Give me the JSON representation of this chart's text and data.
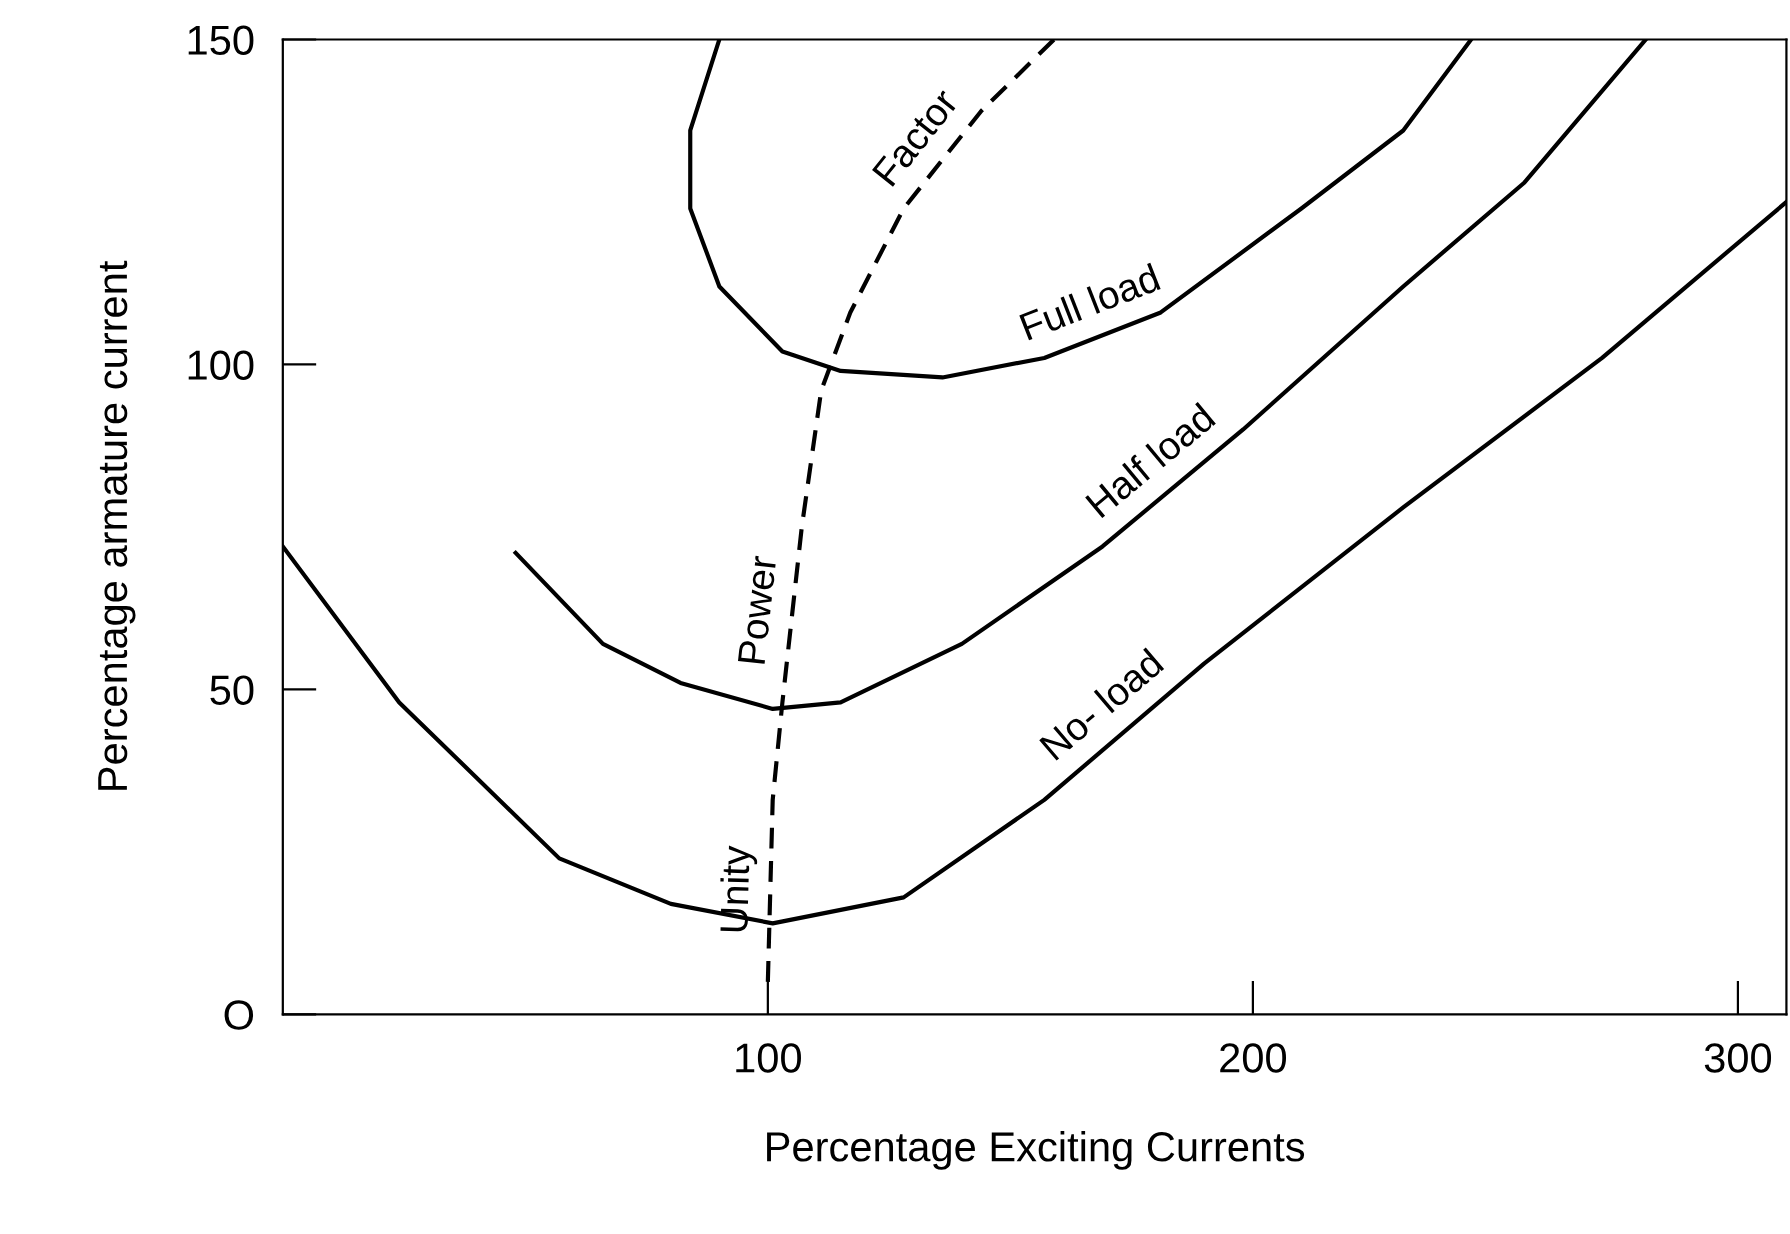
{
  "chart_data": {
    "type": "line",
    "xlabel": "Percentage Exciting Currents",
    "ylabel": "Percentage armature current",
    "xlim": [
      0,
      310
    ],
    "ylim": [
      0,
      150
    ],
    "xticks": [
      100,
      200,
      300
    ],
    "yticks": [
      {
        "value": 0,
        "label": "O"
      },
      50,
      100,
      150
    ],
    "grid": false,
    "marker": "none",
    "series": [
      {
        "name": "No- load",
        "color": "#000000",
        "line_style": "solid",
        "x": [
          0,
          24,
          57,
          80,
          101,
          128,
          157,
          190,
          231,
          272,
          310
        ],
        "values": [
          72,
          48,
          24,
          17,
          14,
          18,
          33,
          54,
          78,
          101,
          125
        ]
      },
      {
        "name": "Half load",
        "color": "#000000",
        "line_style": "solid",
        "x": [
          48,
          66,
          82,
          101,
          115,
          140,
          169,
          198,
          231,
          256,
          281
        ],
        "values": [
          71,
          57,
          51,
          47,
          48,
          57,
          72,
          90,
          112,
          128,
          150
        ]
      },
      {
        "name": "Full load",
        "color": "#000000",
        "line_style": "solid",
        "x": [
          90,
          84,
          84,
          90,
          103,
          115,
          136,
          157,
          181,
          210,
          231,
          245
        ],
        "values": [
          150,
          136,
          124,
          112,
          102,
          99,
          98,
          101,
          108,
          124,
          136,
          150
        ]
      },
      {
        "name": "Unity Power Factor",
        "color": "#000000",
        "line_style": "dashed",
        "x": [
          100,
          101,
          103,
          107,
          111,
          117,
          128,
          144,
          159
        ],
        "values": [
          5,
          33,
          48,
          75,
          96,
          108,
          124,
          139,
          150
        ]
      }
    ]
  }
}
